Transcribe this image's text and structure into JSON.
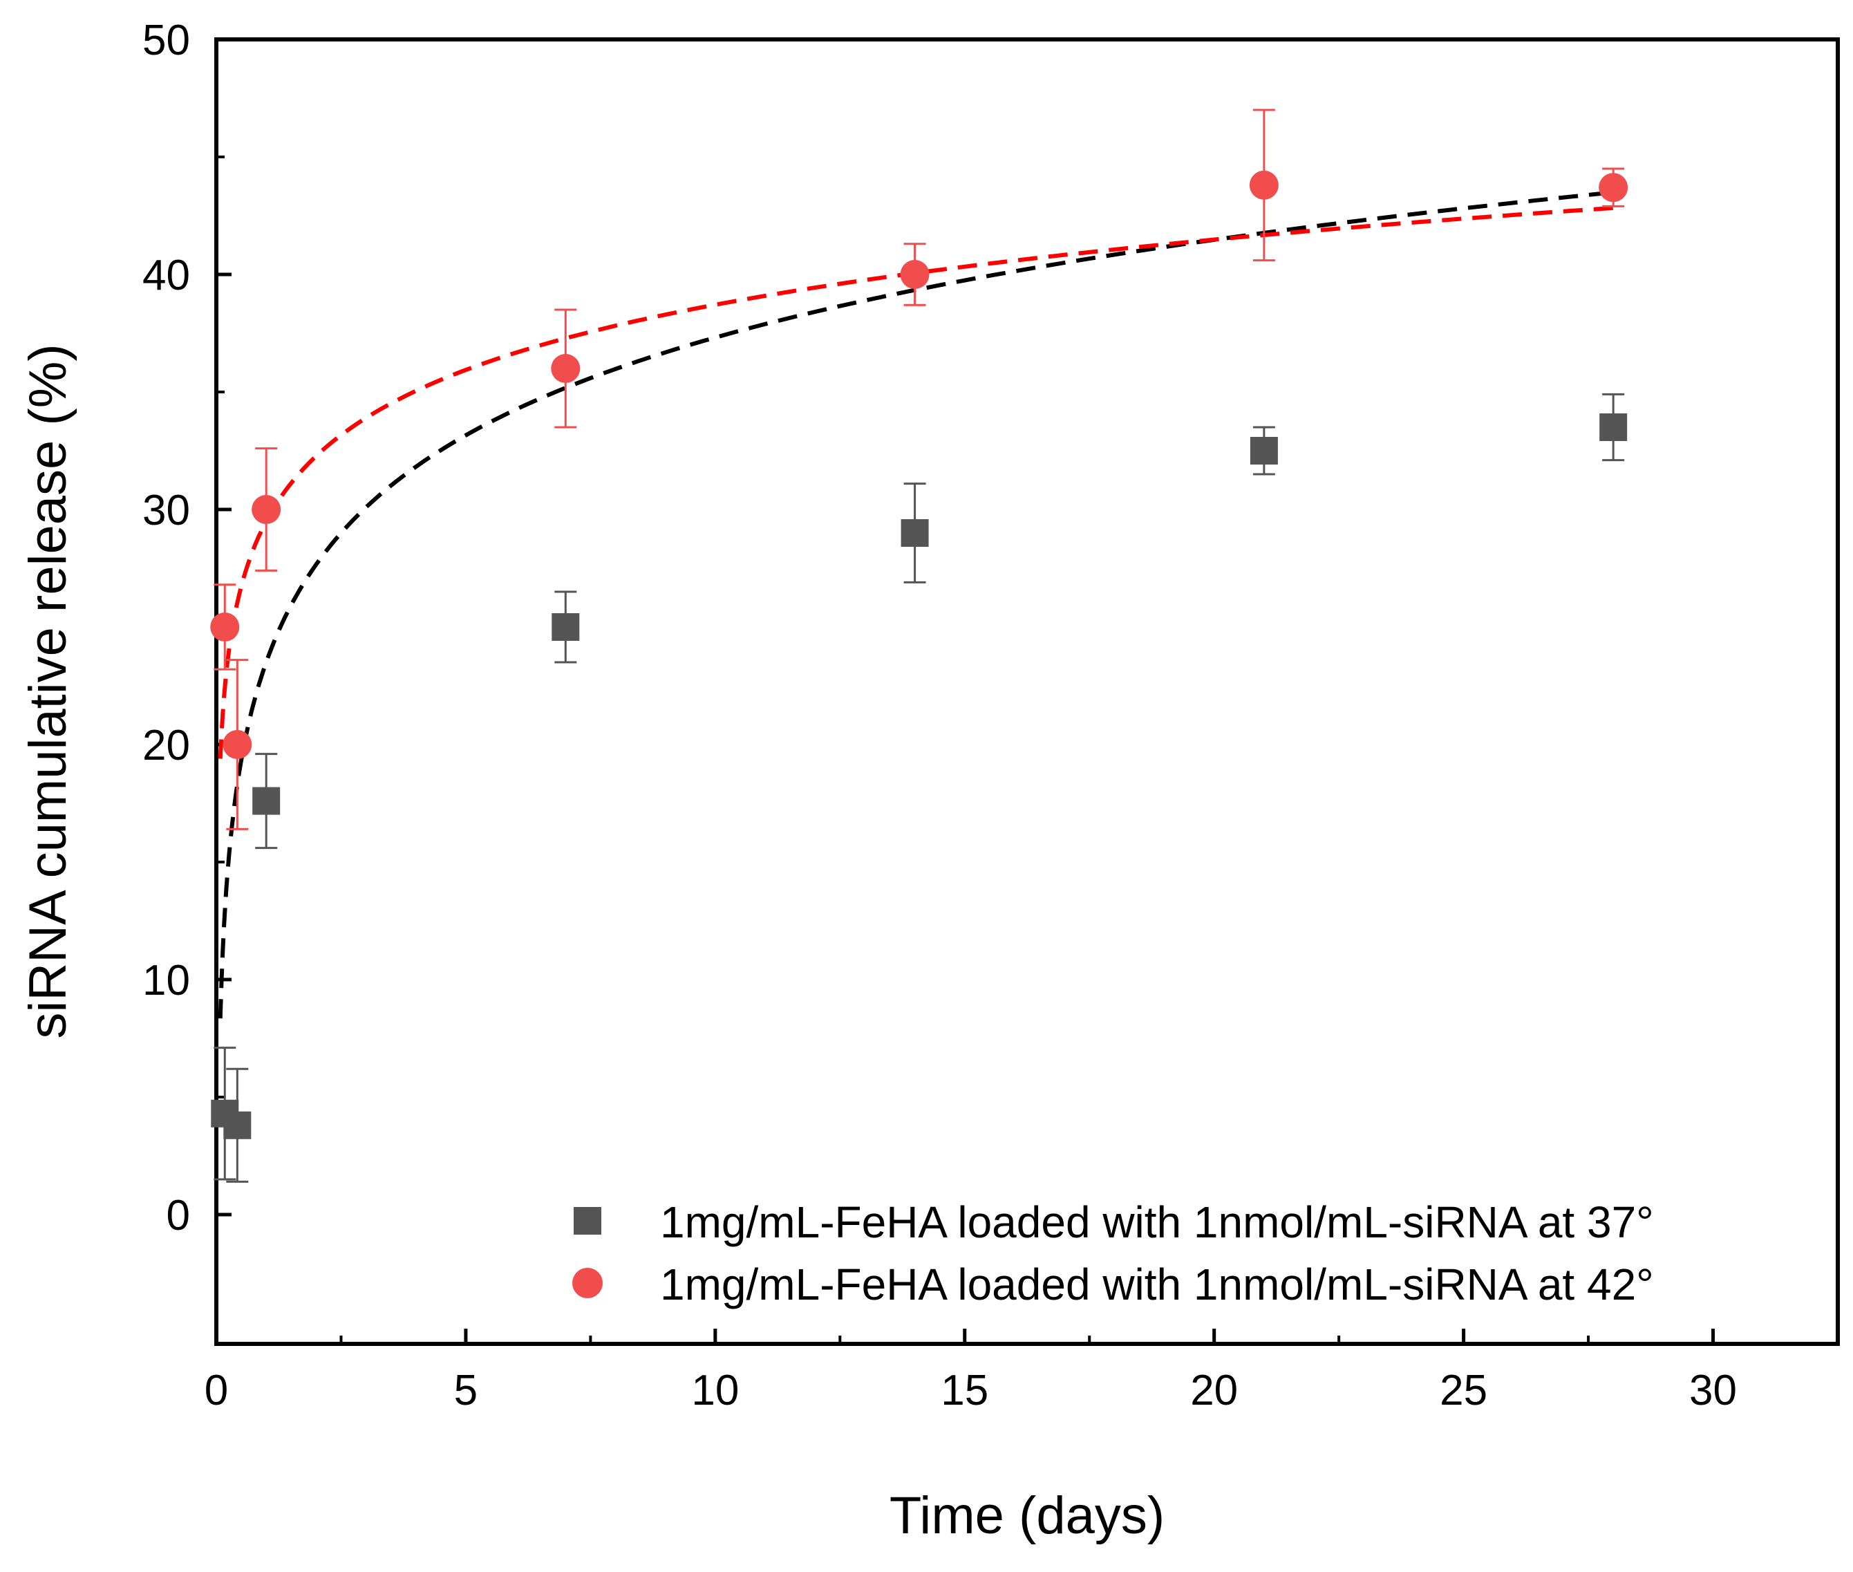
{
  "chart_data": {
    "type": "scatter",
    "xlabel": "Time (days)",
    "ylabel": "siRNA cumulative release (%)",
    "xlim": [
      0,
      32.5
    ],
    "ylim": [
      -5.5,
      50
    ],
    "xticks": [
      0,
      5,
      10,
      15,
      20,
      25,
      30
    ],
    "yticks": [
      0,
      10,
      20,
      30,
      40,
      50
    ],
    "xtick_labels": [
      "0",
      "5",
      "10",
      "15",
      "20",
      "25",
      "30"
    ],
    "ytick_labels": [
      "0",
      "10",
      "20",
      "30",
      "40",
      "50"
    ],
    "legend_position": "bottom-right",
    "series": [
      {
        "name": "1mg/mL-FeHA loaded with 1nmol/mL-siRNA at 37°",
        "marker": "square",
        "color": "#555555",
        "fit_color": "#000000",
        "x": [
          0.17,
          0.42,
          1,
          7,
          14,
          21,
          28
        ],
        "y": [
          4.3,
          3.8,
          17.6,
          25.0,
          29.0,
          32.5,
          33.5
        ],
        "err": [
          2.8,
          2.4,
          2.0,
          1.5,
          2.1,
          1.0,
          1.4
        ],
        "fit": {
          "a": 23.5,
          "b": 6.0,
          "x_start": 0.08,
          "x_end": 28
        }
      },
      {
        "name": "1mg/mL-FeHA loaded with 1nmol/mL-siRNA at 42°",
        "marker": "circle",
        "color": "#f24d4d",
        "fit_color": "#ff0000",
        "x": [
          0.17,
          0.42,
          1,
          7,
          14,
          21,
          28
        ],
        "y": [
          25.0,
          20.0,
          30.0,
          36.0,
          40.0,
          43.8,
          43.7
        ],
        "err": [
          1.8,
          3.6,
          2.6,
          2.5,
          1.3,
          3.2,
          0.8
        ],
        "fit": {
          "a": 29.5,
          "b": 4.0,
          "x_start": 0.08,
          "x_end": 28
        }
      }
    ]
  }
}
